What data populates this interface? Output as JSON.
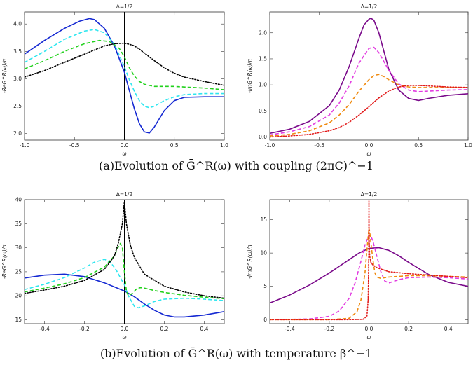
{
  "captions": {
    "a": "(a)Evolution of Ḡ^R(ω) with coupling (2πC)^−1",
    "b": "(b)Evolution of Ḡ^R(ω) with temperature β^−1"
  },
  "colors": {
    "blue": "#1428d2",
    "cyan": "#2ee6ef",
    "green": "#22d11d",
    "black": "#000000",
    "purple": "#7a0a8a",
    "magenta": "#e23ce0",
    "orange": "#ef8a10",
    "red": "#e21a1a"
  },
  "chart_data": [
    {
      "id": "a-re",
      "type": "line",
      "title": "Δ=1/2",
      "xlabel": "ω",
      "ylabel": "-ReG^R(ω)/π",
      "xlim": [
        -1.0,
        1.0
      ],
      "ylim": [
        1.88,
        4.22
      ],
      "xticks": [
        -1.0,
        -0.5,
        0.0,
        0.5,
        1.0
      ],
      "xtick_labels": [
        "-1.0",
        "-0.5",
        "0.0",
        "0.5",
        "1.0"
      ],
      "yticks": [
        2.0,
        2.5,
        3.0,
        3.5,
        4.0
      ],
      "ytick_labels": [
        "2.0",
        "2.5",
        "3.0",
        "3.5",
        "4.0"
      ],
      "zero_line": true,
      "series": [
        {
          "color": "blue",
          "dash": "solid",
          "x": [
            -1.0,
            -0.8,
            -0.6,
            -0.45,
            -0.35,
            -0.3,
            -0.2,
            -0.1,
            0.0,
            0.05,
            0.1,
            0.15,
            0.2,
            0.25,
            0.3,
            0.4,
            0.5,
            0.6,
            0.8,
            1.0
          ],
          "y": [
            3.45,
            3.7,
            3.92,
            4.05,
            4.1,
            4.08,
            3.92,
            3.6,
            3.12,
            2.78,
            2.45,
            2.18,
            2.03,
            2.01,
            2.12,
            2.42,
            2.6,
            2.66,
            2.67,
            2.67
          ]
        },
        {
          "color": "cyan",
          "dash": "dashed",
          "x": [
            -1.0,
            -0.8,
            -0.6,
            -0.4,
            -0.3,
            -0.2,
            -0.1,
            0.0,
            0.05,
            0.1,
            0.15,
            0.2,
            0.25,
            0.3,
            0.4,
            0.5,
            0.6,
            0.8,
            1.0
          ],
          "y": [
            3.3,
            3.5,
            3.72,
            3.87,
            3.9,
            3.84,
            3.63,
            3.22,
            2.98,
            2.77,
            2.6,
            2.5,
            2.47,
            2.5,
            2.6,
            2.67,
            2.71,
            2.73,
            2.73
          ]
        },
        {
          "color": "green",
          "dash": "dashed",
          "x": [
            -1.0,
            -0.8,
            -0.6,
            -0.4,
            -0.25,
            -0.15,
            -0.05,
            0.0,
            0.05,
            0.1,
            0.15,
            0.2,
            0.3,
            0.4,
            0.5,
            0.6,
            0.8,
            1.0
          ],
          "y": [
            3.18,
            3.33,
            3.5,
            3.64,
            3.7,
            3.68,
            3.55,
            3.4,
            3.2,
            3.05,
            2.95,
            2.9,
            2.86,
            2.86,
            2.86,
            2.85,
            2.83,
            2.8
          ]
        },
        {
          "color": "black",
          "dash": "dotted",
          "x": [
            -1.0,
            -0.8,
            -0.6,
            -0.4,
            -0.2,
            -0.1,
            0.0,
            0.05,
            0.1,
            0.15,
            0.2,
            0.3,
            0.4,
            0.5,
            0.6,
            0.8,
            1.0
          ],
          "y": [
            3.03,
            3.15,
            3.3,
            3.45,
            3.6,
            3.64,
            3.65,
            3.63,
            3.6,
            3.54,
            3.47,
            3.33,
            3.2,
            3.1,
            3.03,
            2.95,
            2.88
          ]
        }
      ]
    },
    {
      "id": "a-im",
      "type": "line",
      "title": "Δ=1/2",
      "xlabel": "ω",
      "ylabel": "-ImG^R(ω)/π",
      "xlim": [
        -1.0,
        1.0
      ],
      "ylim": [
        -0.06,
        2.4
      ],
      "xticks": [
        -1.0,
        -0.5,
        0.0,
        0.5,
        1.0
      ],
      "xtick_labels": [
        "-1.0",
        "-0.5",
        "0.0",
        "0.5",
        "1.0"
      ],
      "yticks": [
        0.0,
        0.5,
        1.0,
        1.5,
        2.0
      ],
      "ytick_labels": [
        "0.0",
        "0.5",
        "1.0",
        "1.5",
        "2.0"
      ],
      "zero_line": true,
      "series": [
        {
          "color": "purple",
          "dash": "solid",
          "x": [
            -1.0,
            -0.8,
            -0.6,
            -0.4,
            -0.3,
            -0.2,
            -0.1,
            -0.05,
            0.0,
            0.02,
            0.05,
            0.1,
            0.15,
            0.2,
            0.3,
            0.4,
            0.5,
            0.6,
            0.8,
            1.0
          ],
          "y": [
            0.07,
            0.15,
            0.3,
            0.6,
            0.9,
            1.35,
            1.9,
            2.15,
            2.26,
            2.28,
            2.24,
            2.0,
            1.65,
            1.3,
            0.9,
            0.74,
            0.7,
            0.74,
            0.8,
            0.83
          ]
        },
        {
          "color": "magenta",
          "dash": "dashed",
          "x": [
            -1.0,
            -0.8,
            -0.6,
            -0.4,
            -0.3,
            -0.2,
            -0.1,
            0.0,
            0.05,
            0.1,
            0.15,
            0.2,
            0.3,
            0.4,
            0.5,
            0.6,
            0.8,
            1.0
          ],
          "y": [
            0.04,
            0.1,
            0.2,
            0.42,
            0.65,
            0.98,
            1.42,
            1.7,
            1.72,
            1.62,
            1.45,
            1.28,
            1.02,
            0.9,
            0.87,
            0.88,
            0.9,
            0.91
          ]
        },
        {
          "color": "orange",
          "dash": "dashed",
          "x": [
            -1.0,
            -0.8,
            -0.6,
            -0.4,
            -0.3,
            -0.2,
            -0.1,
            0.0,
            0.05,
            0.1,
            0.15,
            0.2,
            0.3,
            0.4,
            0.5,
            0.6,
            0.8,
            1.0
          ],
          "y": [
            0.02,
            0.05,
            0.12,
            0.27,
            0.42,
            0.62,
            0.88,
            1.1,
            1.18,
            1.2,
            1.16,
            1.1,
            1.0,
            0.96,
            0.95,
            0.95,
            0.95,
            0.95
          ]
        },
        {
          "color": "red",
          "dash": "dotted",
          "x": [
            -1.0,
            -0.8,
            -0.6,
            -0.4,
            -0.3,
            -0.2,
            -0.1,
            0.0,
            0.1,
            0.2,
            0.3,
            0.4,
            0.5,
            0.6,
            0.8,
            1.0
          ],
          "y": [
            0.0,
            0.02,
            0.05,
            0.12,
            0.18,
            0.28,
            0.42,
            0.58,
            0.75,
            0.88,
            0.96,
            0.99,
            0.99,
            0.98,
            0.96,
            0.95
          ]
        }
      ]
    },
    {
      "id": "b-re",
      "type": "line",
      "title": "Δ=1/2",
      "xlabel": "ω",
      "ylabel": "-ReG^R(ω)/π",
      "xlim": [
        -0.5,
        0.5
      ],
      "ylim": [
        14.2,
        40.0
      ],
      "xticks": [
        -0.4,
        -0.2,
        0.0,
        0.2,
        0.4
      ],
      "xtick_labels": [
        "-0.4",
        "-0.2",
        "0.0",
        "0.2",
        "0.4"
      ],
      "yticks": [
        15,
        20,
        25,
        30,
        35,
        40
      ],
      "ytick_labels": [
        "15",
        "20",
        "25",
        "30",
        "35",
        "40"
      ],
      "zero_line": true,
      "series": [
        {
          "color": "blue",
          "dash": "solid",
          "x": [
            -0.5,
            -0.4,
            -0.3,
            -0.2,
            -0.1,
            0.0,
            0.05,
            0.1,
            0.15,
            0.2,
            0.25,
            0.3,
            0.4,
            0.5
          ],
          "y": [
            23.7,
            24.3,
            24.5,
            24.0,
            22.7,
            21.0,
            19.8,
            18.3,
            17.0,
            16.0,
            15.6,
            15.6,
            16.0,
            16.7
          ]
        },
        {
          "color": "cyan",
          "dash": "dashed",
          "x": [
            -0.5,
            -0.4,
            -0.3,
            -0.2,
            -0.15,
            -0.1,
            -0.07,
            -0.04,
            -0.01,
            0.0,
            0.02,
            0.05,
            0.07,
            0.1,
            0.15,
            0.2,
            0.3,
            0.4,
            0.5
          ],
          "y": [
            21.3,
            22.4,
            23.8,
            25.8,
            27.0,
            27.6,
            27.0,
            25.3,
            23.0,
            22.3,
            20.0,
            17.8,
            17.5,
            17.9,
            18.8,
            19.3,
            19.5,
            19.3,
            19.0
          ]
        },
        {
          "color": "green",
          "dash": "dashed",
          "x": [
            -0.5,
            -0.4,
            -0.3,
            -0.2,
            -0.1,
            -0.05,
            -0.03,
            -0.02,
            -0.01,
            0.0,
            0.01,
            0.02,
            0.04,
            0.06,
            0.08,
            0.1,
            0.15,
            0.2,
            0.3,
            0.4,
            0.5
          ],
          "y": [
            20.8,
            21.6,
            22.5,
            23.8,
            26.0,
            28.3,
            30.2,
            30.9,
            30.0,
            25.0,
            21.0,
            20.0,
            20.5,
            21.4,
            21.7,
            21.6,
            21.1,
            20.7,
            20.1,
            19.7,
            19.4
          ]
        },
        {
          "color": "black",
          "dash": "dotted",
          "x": [
            -0.5,
            -0.4,
            -0.3,
            -0.2,
            -0.1,
            -0.05,
            -0.03,
            -0.01,
            -0.002,
            0.0,
            0.002,
            0.01,
            0.03,
            0.05,
            0.1,
            0.2,
            0.3,
            0.4,
            0.5
          ],
          "y": [
            20.5,
            21.2,
            22.0,
            23.2,
            25.5,
            28.3,
            31.0,
            35.0,
            38.8,
            39.5,
            38.8,
            35.0,
            30.5,
            28.0,
            24.5,
            22.0,
            20.8,
            20.0,
            19.5
          ]
        }
      ]
    },
    {
      "id": "b-im",
      "type": "line",
      "title": "Δ=1/2",
      "xlabel": "ω",
      "ylabel": "-ImG^R(ω)/π",
      "xlim": [
        -0.5,
        0.5
      ],
      "ylim": [
        -0.6,
        18.0
      ],
      "xticks": [
        -0.4,
        -0.2,
        0.0,
        0.2,
        0.4
      ],
      "xtick_labels": [
        "-0.4",
        "-0.2",
        "0.0",
        "0.2",
        "0.4"
      ],
      "yticks": [
        0,
        5,
        10,
        15
      ],
      "ytick_labels": [
        "0",
        "5",
        "10",
        "15"
      ],
      "zero_line": true,
      "series": [
        {
          "color": "purple",
          "dash": "solid",
          "x": [
            -0.5,
            -0.4,
            -0.3,
            -0.2,
            -0.1,
            -0.05,
            0.0,
            0.05,
            0.1,
            0.15,
            0.2,
            0.3,
            0.4,
            0.5
          ],
          "y": [
            2.5,
            3.7,
            5.2,
            7.0,
            9.0,
            10.0,
            10.7,
            10.8,
            10.4,
            9.6,
            8.6,
            6.8,
            5.6,
            5.0
          ]
        },
        {
          "color": "magenta",
          "dash": "dashed",
          "x": [
            -0.5,
            -0.3,
            -0.2,
            -0.15,
            -0.1,
            -0.07,
            -0.04,
            -0.02,
            0.0,
            0.01,
            0.02,
            0.04,
            0.06,
            0.08,
            0.1,
            0.15,
            0.2,
            0.3,
            0.4,
            0.5
          ],
          "y": [
            0.0,
            0.1,
            0.5,
            1.3,
            3.2,
            5.5,
            8.8,
            11.2,
            12.7,
            12.5,
            11.8,
            9.5,
            7.2,
            5.8,
            5.5,
            6.0,
            6.3,
            6.4,
            6.3,
            6.1
          ]
        },
        {
          "color": "orange",
          "dash": "dashed",
          "x": [
            -0.5,
            -0.2,
            -0.1,
            -0.06,
            -0.04,
            -0.02,
            -0.01,
            0.0,
            0.005,
            0.01,
            0.02,
            0.03,
            0.04,
            0.06,
            0.1,
            0.2,
            0.3,
            0.4,
            0.5
          ],
          "y": [
            0.0,
            0.0,
            0.2,
            1.2,
            3.0,
            7.0,
            10.5,
            13.7,
            13.0,
            11.5,
            9.0,
            7.0,
            6.4,
            6.2,
            6.4,
            6.6,
            6.6,
            6.5,
            6.4
          ]
        },
        {
          "color": "red",
          "dash": "dotted",
          "x": [
            -0.5,
            -0.1,
            -0.03,
            -0.01,
            -0.004,
            -0.001,
            0.0,
            0.001,
            0.004,
            0.01,
            0.02,
            0.04,
            0.08,
            0.1,
            0.2,
            0.3,
            0.4,
            0.5
          ],
          "y": [
            0.0,
            0.0,
            0.05,
            0.5,
            3.0,
            9.0,
            17.8,
            12.0,
            9.5,
            8.6,
            8.2,
            7.8,
            7.4,
            7.2,
            6.9,
            6.7,
            6.5,
            6.3
          ]
        }
      ]
    }
  ]
}
